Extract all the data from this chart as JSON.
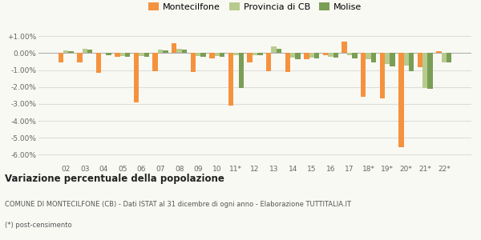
{
  "years": [
    "02",
    "03",
    "04",
    "05",
    "06",
    "07",
    "08",
    "09",
    "10",
    "11*",
    "12",
    "13",
    "14",
    "15",
    "16",
    "17",
    "18*",
    "19*",
    "20*",
    "21*",
    "22*"
  ],
  "montecilfone": [
    -0.55,
    -0.55,
    -1.15,
    -0.2,
    -2.9,
    -1.05,
    0.6,
    -1.1,
    -0.3,
    -3.1,
    -0.55,
    -1.05,
    -1.1,
    -0.35,
    -0.1,
    0.7,
    -2.6,
    -2.65,
    -5.55,
    -0.85,
    0.1
  ],
  "provincia_cb": [
    0.15,
    0.25,
    0.0,
    -0.15,
    -0.15,
    0.2,
    0.25,
    -0.15,
    -0.15,
    -0.1,
    -0.1,
    0.4,
    -0.25,
    -0.25,
    -0.2,
    -0.1,
    -0.35,
    -0.65,
    -0.75,
    -2.05,
    -0.55
  ],
  "molise": [
    0.1,
    0.2,
    -0.1,
    -0.2,
    -0.2,
    0.18,
    0.2,
    -0.2,
    -0.2,
    -2.05,
    -0.1,
    0.25,
    -0.35,
    -0.3,
    -0.25,
    -0.3,
    -0.55,
    -0.8,
    -1.05,
    -2.1,
    -0.55
  ],
  "color_montecilfone": "#f5923e",
  "color_provincia": "#b8cb8e",
  "color_molise": "#7a9e55",
  "background_color": "#f9f9f4",
  "grid_color": "#dddddd",
  "ylim_min": -6.5,
  "ylim_max": 1.3,
  "yticks": [
    1.0,
    0.0,
    -1.0,
    -2.0,
    -3.0,
    -4.0,
    -5.0,
    -6.0
  ],
  "title_bold": "Variazione percentuale della popolazione",
  "subtitle1": "COMUNE DI MONTECILFONE (CB) - Dati ISTAT al 31 dicembre di ogni anno - Elaborazione TUTTITALIA.IT",
  "subtitle2": "(*) post-censimento",
  "legend_labels": [
    "Montecilfone",
    "Provincia di CB",
    "Molise"
  ]
}
